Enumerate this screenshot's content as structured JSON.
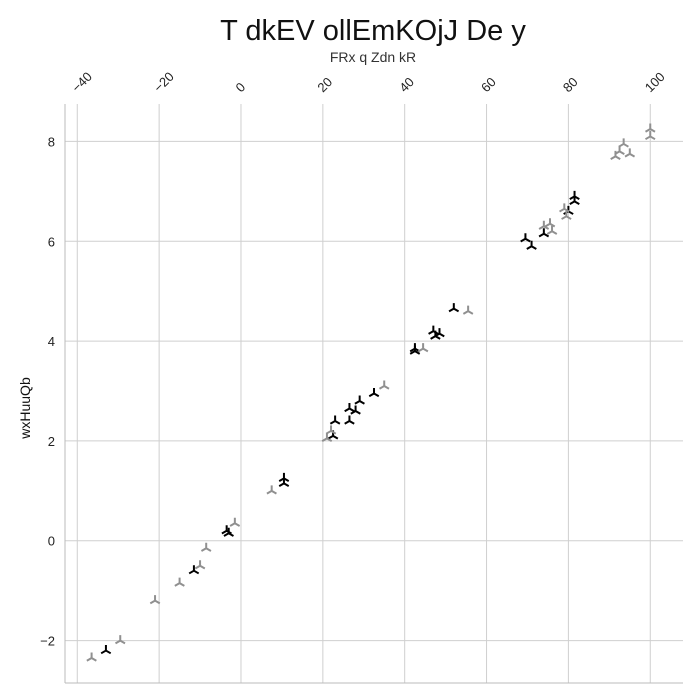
{
  "chart_data": {
    "type": "scatter",
    "title": "T  dkEV  ollEmKOjJ De y",
    "subtitle": "FRx q Zdn kR",
    "xlabel": "",
    "ylabel": "wxHuuQb",
    "xlim": [
      -43,
      108
    ],
    "ylim": [
      -2.85,
      8.75
    ],
    "x_ticks": [
      -40,
      -20,
      0,
      20,
      40,
      60,
      80,
      100
    ],
    "y_ticks": [
      -2,
      0,
      2,
      4,
      6,
      8
    ],
    "x_axis_position": "top",
    "grid": true,
    "marker": "tri",
    "series": [
      {
        "color": "#000000",
        "points": [
          [
            -33,
            -2.2
          ],
          [
            -11.5,
            -0.6
          ],
          [
            -3.5,
            0.2
          ],
          [
            -3,
            0.15
          ],
          [
            10.5,
            1.15
          ],
          [
            10.5,
            1.25
          ],
          [
            22.5,
            2.1
          ],
          [
            23,
            2.4
          ],
          [
            26.5,
            2.4
          ],
          [
            26.5,
            2.65
          ],
          [
            28,
            2.6
          ],
          [
            29,
            2.8
          ],
          [
            32.5,
            2.95
          ],
          [
            42.5,
            3.85
          ],
          [
            42.5,
            3.8
          ],
          [
            47,
            4.2
          ],
          [
            47.5,
            4.1
          ],
          [
            48.5,
            4.15
          ],
          [
            52,
            4.65
          ],
          [
            69.5,
            6.05
          ],
          [
            71,
            5.9
          ],
          [
            74,
            6.15
          ],
          [
            80,
            6.6
          ],
          [
            81.5,
            6.9
          ],
          [
            81.5,
            6.8
          ]
        ]
      },
      {
        "color": "#909090",
        "points": [
          [
            -36.5,
            -2.35
          ],
          [
            -29.5,
            -2.0
          ],
          [
            -21,
            -1.2
          ],
          [
            -15,
            -0.85
          ],
          [
            -10,
            -0.5
          ],
          [
            -8.5,
            -0.15
          ],
          [
            -1.5,
            0.35
          ],
          [
            7.5,
            1.0
          ],
          [
            21,
            2.05
          ],
          [
            22,
            2.2
          ],
          [
            35,
            3.1
          ],
          [
            44.5,
            3.85
          ],
          [
            55.5,
            4.6
          ],
          [
            74,
            6.3
          ],
          [
            75.5,
            6.35
          ],
          [
            76,
            6.2
          ],
          [
            79,
            6.65
          ],
          [
            79.5,
            6.5
          ],
          [
            91.5,
            7.7
          ],
          [
            92.5,
            7.8
          ],
          [
            93.5,
            7.95
          ],
          [
            95,
            7.75
          ],
          [
            100,
            8.25
          ],
          [
            100,
            8.1
          ]
        ]
      }
    ]
  }
}
